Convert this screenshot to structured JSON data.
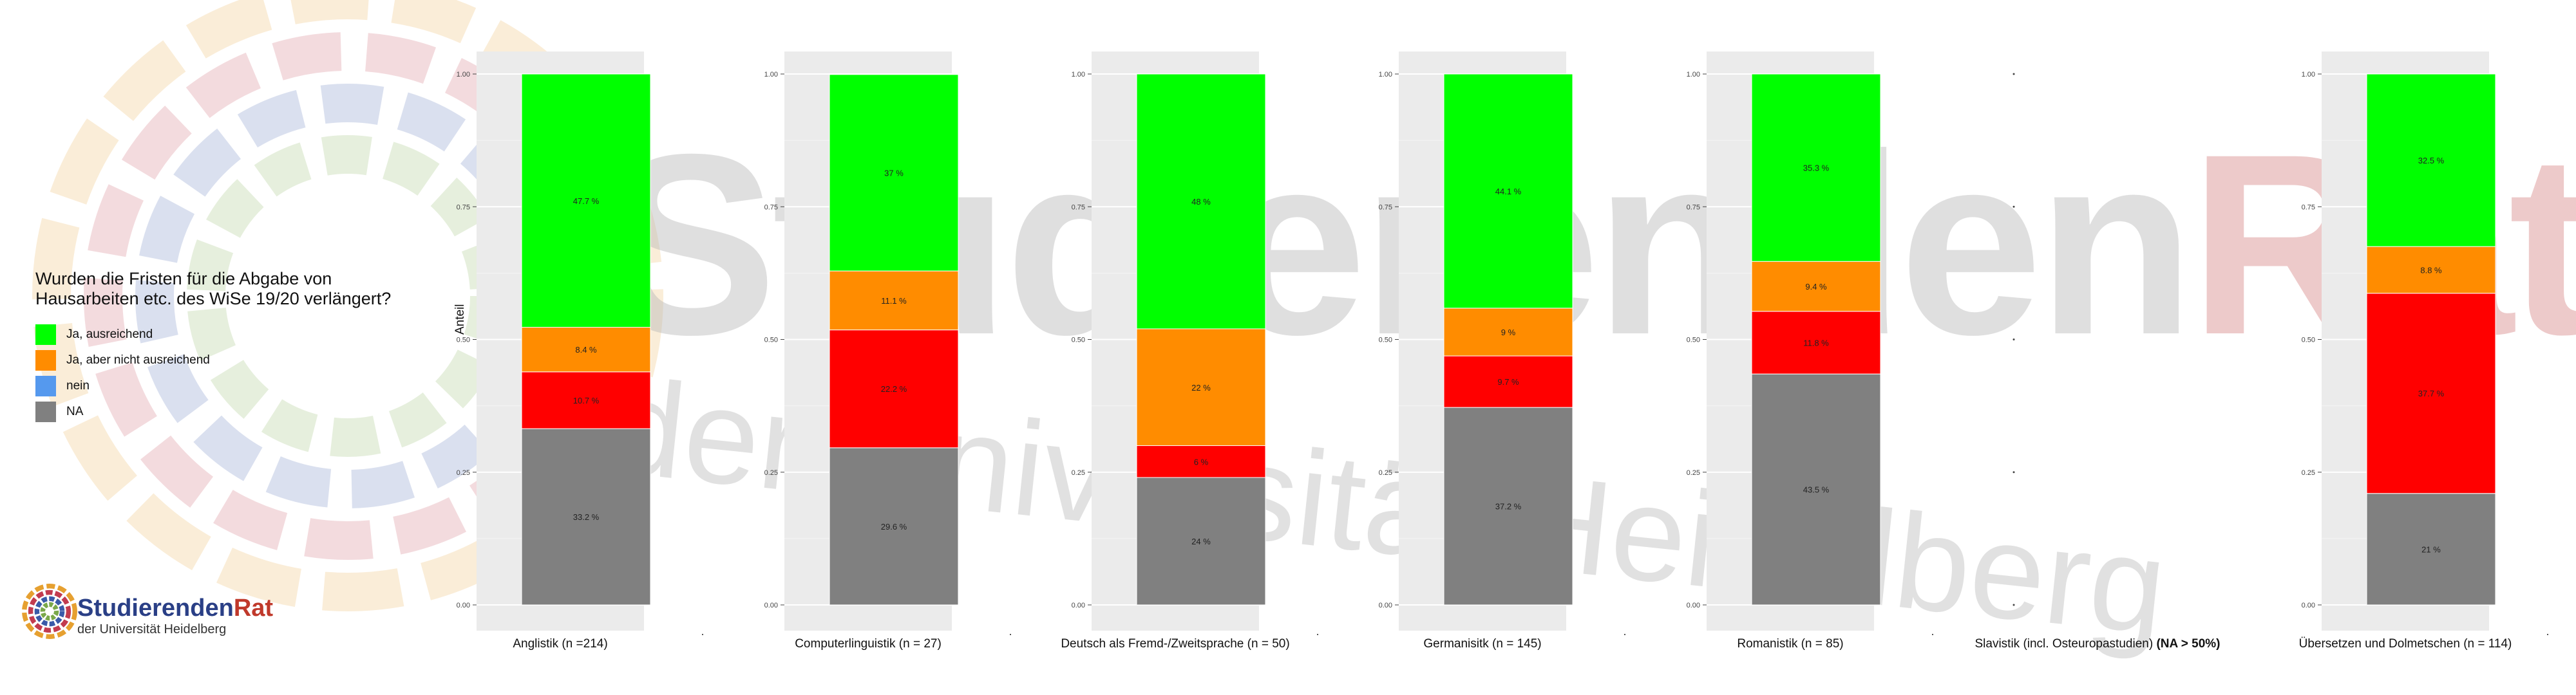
{
  "legend": {
    "title_line1": "Wurden die Fristen für die Abgabe von",
    "title_line2": "Hausarbeiten etc. des WiSe 19/20 verlängert?",
    "items": [
      {
        "label": "Ja, ausreichend",
        "color": "#00ff00"
      },
      {
        "label": "Ja, aber nicht ausreichend",
        "color": "#ff8c00"
      },
      {
        "label": "nein",
        "color": "#5599ee"
      },
      {
        "label": "NA",
        "color": "#808080"
      }
    ]
  },
  "y_axis_label": "Anteil",
  "logo": {
    "title_a": "Studierenden",
    "title_b": "Rat",
    "subtitle": "der Universität Heidelberg"
  },
  "watermark": {
    "line1_a": "Studierenden",
    "line1_b": "Rat",
    "line2": "der Universität Heidelberg"
  },
  "chart_data": [
    {
      "type": "bar",
      "stacked": true,
      "caption": "Anglistik (n =214)",
      "ylim": [
        0,
        1
      ],
      "yticks": [
        "0.00",
        "0.25",
        "0.50",
        "0.75",
        "1.00"
      ],
      "segments": [
        {
          "category": "Ja, ausreichend",
          "value": 0.477,
          "label": "47.7 %"
        },
        {
          "category": "Ja, aber nicht ausreichend",
          "value": 0.084,
          "label": "8.4 %"
        },
        {
          "category": "nein",
          "value": 0.107,
          "label": "10.7 %"
        },
        {
          "category": "NA",
          "value": 0.332,
          "label": "33.2 %"
        }
      ]
    },
    {
      "type": "bar",
      "stacked": true,
      "caption": "Computerlinguistik (n = 27)",
      "ylim": [
        0,
        1
      ],
      "yticks": [
        "0.00",
        "0.25",
        "0.50",
        "0.75",
        "1.00"
      ],
      "segments": [
        {
          "category": "Ja, ausreichend",
          "value": 0.37,
          "label": "37 %"
        },
        {
          "category": "Ja, aber nicht ausreichend",
          "value": 0.111,
          "label": "11.1 %"
        },
        {
          "category": "nein",
          "value": 0.222,
          "label": "22.2 %"
        },
        {
          "category": "NA",
          "value": 0.296,
          "label": "29.6 %"
        }
      ]
    },
    {
      "type": "bar",
      "stacked": true,
      "caption": "Deutsch als Fremd-/Zweitsprache (n = 50)",
      "ylim": [
        0,
        1
      ],
      "yticks": [
        "0.00",
        "0.25",
        "0.50",
        "0.75",
        "1.00"
      ],
      "segments": [
        {
          "category": "Ja, ausreichend",
          "value": 0.48,
          "label": "48 %"
        },
        {
          "category": "Ja, aber nicht ausreichend",
          "value": 0.22,
          "label": "22 %"
        },
        {
          "category": "nein",
          "value": 0.06,
          "label": "6 %"
        },
        {
          "category": "NA",
          "value": 0.24,
          "label": "24 %"
        }
      ]
    },
    {
      "type": "bar",
      "stacked": true,
      "caption": "Germanisitk (n = 145)",
      "ylim": [
        0,
        1
      ],
      "yticks": [
        "0.00",
        "0.25",
        "0.50",
        "0.75",
        "1.00"
      ],
      "segments": [
        {
          "category": "Ja, ausreichend",
          "value": 0.441,
          "label": "44.1 %"
        },
        {
          "category": "Ja, aber nicht ausreichend",
          "value": 0.09,
          "label": "9 %"
        },
        {
          "category": "nein",
          "value": 0.097,
          "label": "9.7 %"
        },
        {
          "category": "NA",
          "value": 0.372,
          "label": "37.2 %"
        }
      ]
    },
    {
      "type": "bar",
      "stacked": true,
      "caption": "Romanistik (n = 85)",
      "ylim": [
        0,
        1
      ],
      "yticks": [
        "0.00",
        "0.25",
        "0.50",
        "0.75",
        "1.00"
      ],
      "segments": [
        {
          "category": "Ja, ausreichend",
          "value": 0.353,
          "label": "35.3 %"
        },
        {
          "category": "Ja, aber nicht ausreichend",
          "value": 0.094,
          "label": "9.4 %"
        },
        {
          "category": "nein",
          "value": 0.118,
          "label": "11.8 %"
        },
        {
          "category": "NA",
          "value": 0.435,
          "label": "43.5 %"
        }
      ]
    },
    {
      "type": "bar",
      "stacked": true,
      "caption": "Slavistik (incl. Osteuropastudien)",
      "caption_bold": "(NA > 50%)",
      "ylim": [
        0,
        1
      ],
      "yticks": [],
      "segments": []
    },
    {
      "type": "bar",
      "stacked": true,
      "caption": "Übersetzen und Dolmetschen (n = 114)",
      "ylim": [
        0,
        1
      ],
      "yticks": [
        "0.00",
        "0.25",
        "0.50",
        "0.75",
        "1.00"
      ],
      "segments": [
        {
          "category": "Ja, ausreichend",
          "value": 0.325,
          "label": "32.5 %"
        },
        {
          "category": "Ja, aber nicht ausreichend",
          "value": 0.088,
          "label": "8.8 %"
        },
        {
          "category": "nein",
          "value": 0.377,
          "label": "37.7 %"
        },
        {
          "category": "NA",
          "value": 0.21,
          "label": "21 %"
        }
      ]
    }
  ]
}
